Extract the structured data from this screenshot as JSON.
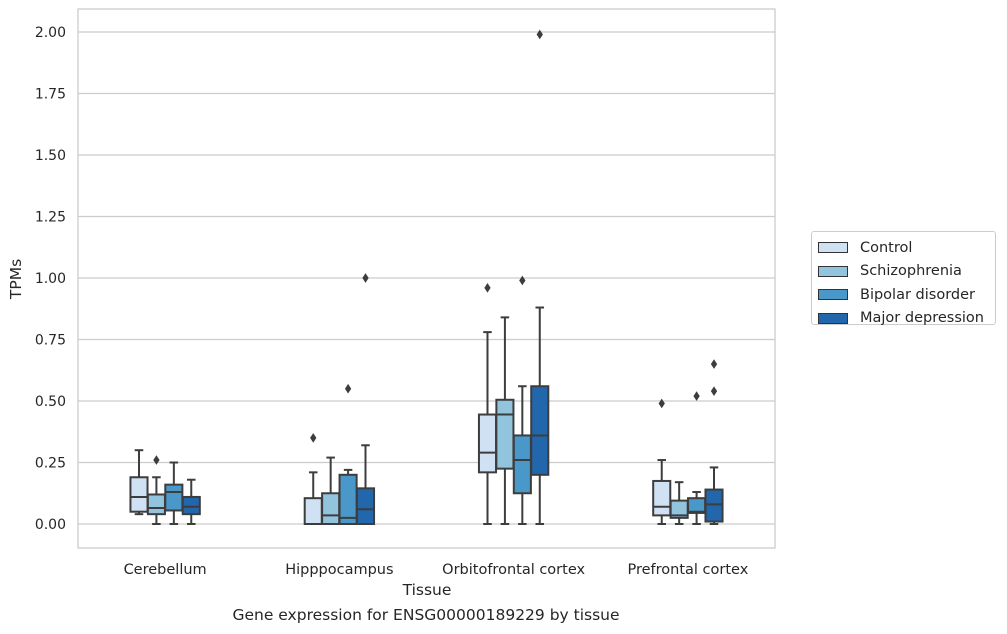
{
  "chart_data": {
    "type": "box",
    "xlabel": "Tissue",
    "ylabel": "TPMs",
    "ylim": [
      -0.1,
      2.1
    ],
    "yticks": [
      0.0,
      0.25,
      0.5,
      0.75,
      1.0,
      1.25,
      1.5,
      1.75,
      2.0
    ],
    "ytick_labels": [
      "0.00",
      "0.25",
      "0.50",
      "0.75",
      "1.00",
      "1.25",
      "1.50",
      "1.75",
      "2.00"
    ],
    "grid": "horizontal",
    "legend_position": "right",
    "categories": [
      "Cerebellum",
      "Hipppocampus",
      "Orbitofrontal cortex",
      "Prefrontal cortex"
    ],
    "series": [
      {
        "name": "Control",
        "color": "#cfe1f2",
        "boxes": [
          {
            "whislo": 0.04,
            "q1": 0.05,
            "med": 0.11,
            "q3": 0.19,
            "whishi": 0.3,
            "fliers": []
          },
          {
            "whislo": 0.0,
            "q1": 0.0,
            "med": 0.0,
            "q3": 0.105,
            "whishi": 0.21,
            "fliers": [
              0.35
            ]
          },
          {
            "whislo": 0.0,
            "q1": 0.21,
            "med": 0.29,
            "q3": 0.445,
            "whishi": 0.78,
            "fliers": [
              0.96
            ]
          },
          {
            "whislo": 0.0,
            "q1": 0.035,
            "med": 0.07,
            "q3": 0.175,
            "whishi": 0.26,
            "fliers": [
              0.49
            ]
          }
        ]
      },
      {
        "name": "Schizophrenia",
        "color": "#93c4de",
        "boxes": [
          {
            "whislo": 0.0,
            "q1": 0.04,
            "med": 0.065,
            "q3": 0.12,
            "whishi": 0.19,
            "fliers": [
              0.26
            ]
          },
          {
            "whislo": 0.0,
            "q1": 0.0,
            "med": 0.035,
            "q3": 0.125,
            "whishi": 0.27,
            "fliers": []
          },
          {
            "whislo": 0.0,
            "q1": 0.225,
            "med": 0.445,
            "q3": 0.505,
            "whishi": 0.84,
            "fliers": []
          },
          {
            "whislo": 0.0,
            "q1": 0.025,
            "med": 0.035,
            "q3": 0.095,
            "whishi": 0.17,
            "fliers": []
          }
        ]
      },
      {
        "name": "Bipolar disorder",
        "color": "#4a98c9",
        "boxes": [
          {
            "whislo": 0.0,
            "q1": 0.055,
            "med": 0.13,
            "q3": 0.16,
            "whishi": 0.25,
            "fliers": []
          },
          {
            "whislo": 0.0,
            "q1": 0.0,
            "med": 0.025,
            "q3": 0.2,
            "whishi": 0.22,
            "fliers": [
              0.55
            ]
          },
          {
            "whislo": 0.0,
            "q1": 0.125,
            "med": 0.26,
            "q3": 0.36,
            "whishi": 0.56,
            "fliers": [
              0.99
            ]
          },
          {
            "whislo": 0.0,
            "q1": 0.045,
            "med": 0.05,
            "q3": 0.105,
            "whishi": 0.13,
            "fliers": [
              0.52
            ]
          }
        ]
      },
      {
        "name": "Major depression",
        "color": "#2266ac",
        "boxes": [
          {
            "whislo": 0.0,
            "q1": 0.04,
            "med": 0.07,
            "q3": 0.11,
            "whishi": 0.18,
            "fliers": []
          },
          {
            "whislo": 0.0,
            "q1": 0.0,
            "med": 0.06,
            "q3": 0.145,
            "whishi": 0.32,
            "fliers": [
              1.0
            ]
          },
          {
            "whislo": 0.0,
            "q1": 0.2,
            "med": 0.36,
            "q3": 0.56,
            "whishi": 0.88,
            "fliers": [
              1.99
            ]
          },
          {
            "whislo": 0.0,
            "q1": 0.01,
            "med": 0.08,
            "q3": 0.14,
            "whishi": 0.23,
            "fliers": [
              0.54,
              0.65
            ]
          }
        ]
      }
    ]
  },
  "caption": "Gene expression for ENSG00000189229 by tissue"
}
